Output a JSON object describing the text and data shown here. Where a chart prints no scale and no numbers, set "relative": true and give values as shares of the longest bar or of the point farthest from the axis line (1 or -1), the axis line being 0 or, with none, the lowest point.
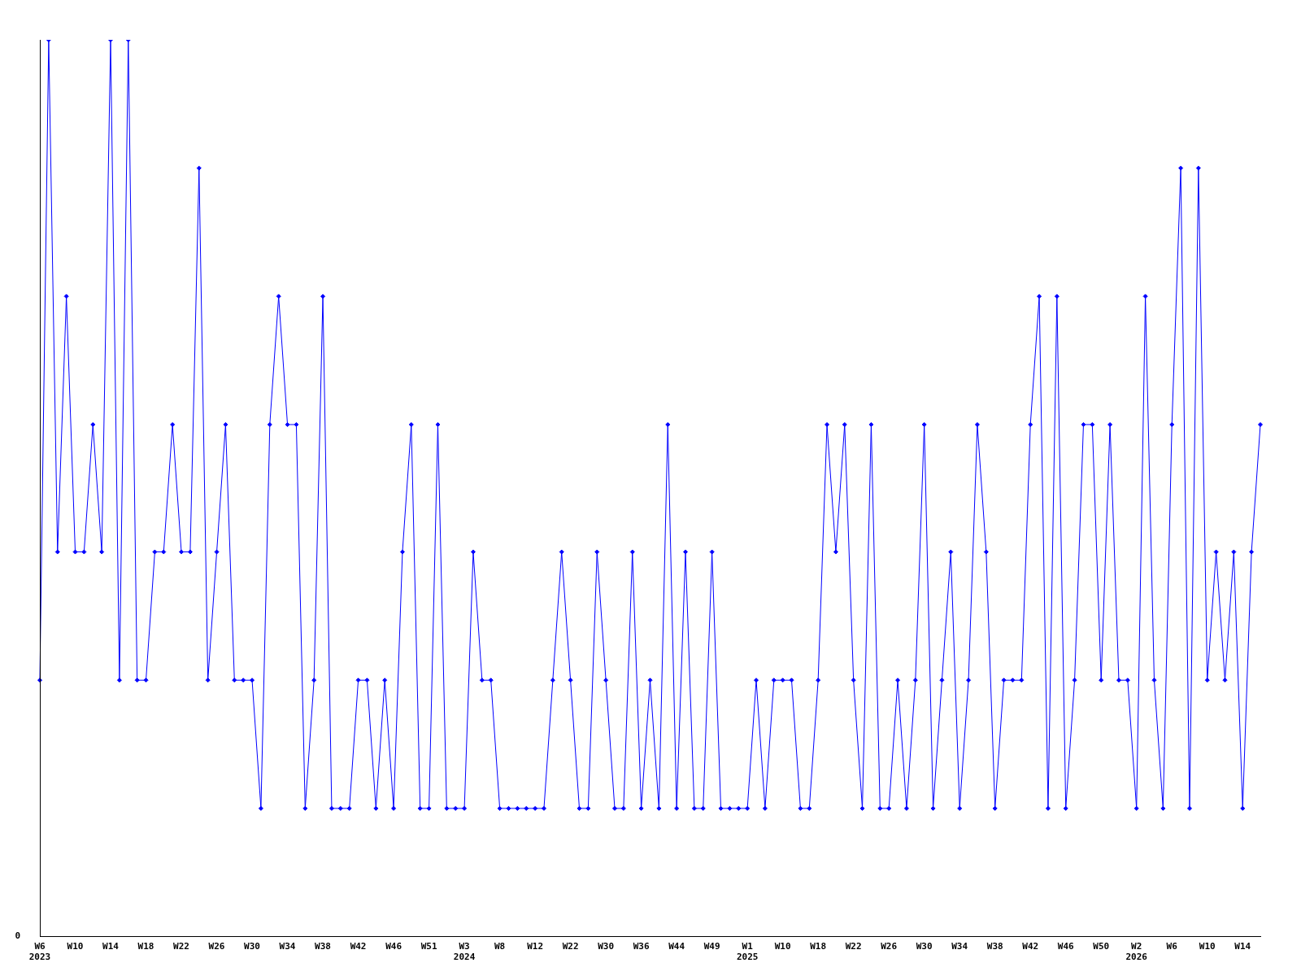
{
  "chart_data": {
    "type": "line",
    "relative": true,
    "color": "#0000ff",
    "marker": "diamond",
    "grid": false,
    "legend": false,
    "annotations": [
      "0"
    ],
    "categories": [
      "W6\n2023",
      null,
      null,
      null,
      "W10",
      null,
      null,
      null,
      "W14",
      null,
      null,
      null,
      "W18",
      null,
      null,
      null,
      "W22",
      null,
      null,
      null,
      "W26",
      null,
      null,
      null,
      "W30",
      null,
      null,
      null,
      "W34",
      null,
      null,
      null,
      "W38",
      null,
      null,
      null,
      "W42",
      null,
      null,
      null,
      "W46",
      null,
      null,
      null,
      "W51",
      null,
      null,
      null,
      "W3\n2024",
      null,
      null,
      null,
      "W8",
      null,
      null,
      null,
      "W12",
      null,
      null,
      null,
      "W22",
      null,
      null,
      null,
      "W30",
      null,
      null,
      null,
      "W36",
      null,
      null,
      null,
      "W44",
      null,
      null,
      null,
      "W49",
      null,
      null,
      null,
      "W1\n2025",
      null,
      null,
      null,
      "W10",
      null,
      null,
      null,
      "W18",
      null,
      null,
      null,
      "W22",
      null,
      null,
      null,
      "W26",
      null,
      null,
      null,
      "W30",
      null,
      null,
      null,
      "W34",
      null,
      null,
      null,
      "W38",
      null,
      null,
      null,
      "W42",
      null,
      null,
      null,
      "W46",
      null,
      null,
      null,
      "W50",
      null,
      null,
      null,
      "W2\n2026",
      null,
      null,
      null,
      "W6",
      null,
      null,
      null,
      "W10",
      null,
      null,
      null,
      "W14",
      null,
      null
    ],
    "values": [
      0.286,
      1,
      0.429,
      0.714,
      0.429,
      0.429,
      0.571,
      0.429,
      1,
      0.286,
      1,
      0.286,
      0.286,
      0.429,
      0.429,
      0.571,
      0.429,
      0.429,
      0.857,
      0.286,
      0.429,
      0.571,
      0.286,
      0.286,
      0.286,
      0.143,
      0.571,
      0.714,
      0.571,
      0.571,
      0.143,
      0.286,
      0.714,
      0.143,
      0.143,
      0.143,
      0.286,
      0.286,
      0.143,
      0.286,
      0.143,
      0.429,
      0.571,
      0.143,
      0.143,
      0.571,
      0.143,
      0.143,
      0.143,
      0.429,
      0.286,
      0.286,
      0.143,
      0.143,
      0.143,
      0.143,
      0.143,
      0.143,
      0.286,
      0.429,
      0.286,
      0.143,
      0.143,
      0.429,
      0.286,
      0.143,
      0.143,
      0.429,
      0.143,
      0.286,
      0.143,
      0.571,
      0.143,
      0.429,
      0.143,
      0.143,
      0.429,
      0.143,
      0.143,
      0.143,
      0.143,
      0.286,
      0.143,
      0.286,
      0.286,
      0.286,
      0.143,
      0.143,
      0.286,
      0.571,
      0.429,
      0.571,
      0.286,
      0.143,
      0.571,
      0.143,
      0.143,
      0.286,
      0.143,
      0.286,
      0.571,
      0.143,
      0.286,
      0.429,
      0.143,
      0.286,
      0.571,
      0.429,
      0.143,
      0.286,
      0.286,
      0.286,
      0.571,
      0.714,
      0.143,
      0.714,
      0.143,
      0.286,
      0.571,
      0.571,
      0.286,
      0.571,
      0.286,
      0.286,
      0.143,
      0.714,
      0.286,
      0.143,
      0.571,
      0.857,
      0.143,
      0.857,
      0.286,
      0.429,
      0.286,
      0.429,
      0.143,
      0.429,
      0.571
    ]
  }
}
